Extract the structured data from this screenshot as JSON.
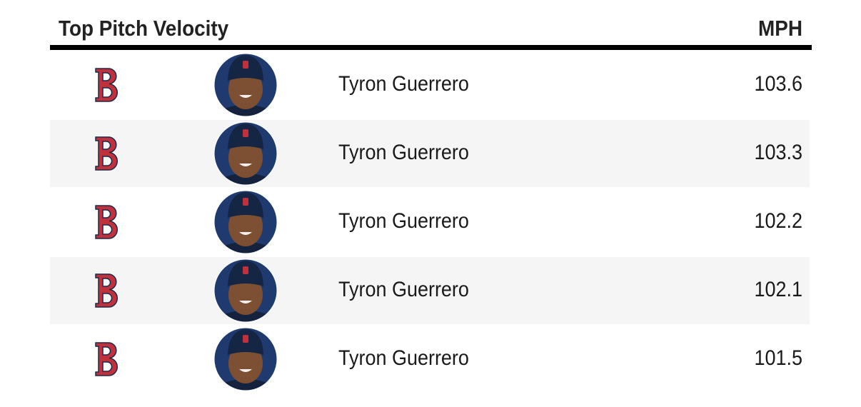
{
  "header": {
    "title": "Top Pitch Velocity",
    "unit": "MPH"
  },
  "table": {
    "rows": [
      {
        "name": "Tyron Guerrero",
        "value": 103.6
      },
      {
        "name": "Tyron Guerrero",
        "value": 103.3
      },
      {
        "name": "Tyron Guerrero",
        "value": 102.2
      },
      {
        "name": "Tyron Guerrero",
        "value": 102.1
      },
      {
        "name": "Tyron Guerrero",
        "value": 101.5
      }
    ]
  }
}
